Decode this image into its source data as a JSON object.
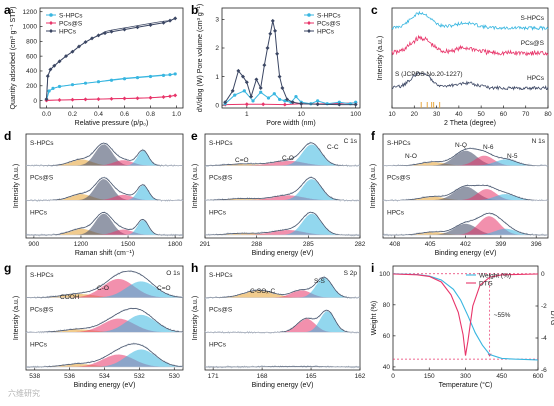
{
  "colors": {
    "shpcs": "#38b6e0",
    "pcs": "#e8356a",
    "hpcs": "#3b4663",
    "sulfur": "#e6a030",
    "dtg": "#e8356a",
    "weight": "#38b6e0"
  },
  "watermark": "六维研究",
  "chart_data": [
    {
      "panel": "a",
      "type": "line",
      "xlabel": "Relative pressure (p/p₀)",
      "ylabel": "Quantity adsorbed (cm³ g⁻¹ STP)",
      "xlim": [
        -0.05,
        1.05
      ],
      "ylim": [
        -100,
        1250
      ],
      "xticks": [
        "0.0",
        "0.2",
        "0.4",
        "0.6",
        "0.8",
        "1.0"
      ],
      "yticks": [
        "0",
        "200",
        "400",
        "600",
        "800",
        "1000",
        "1200"
      ],
      "legend_position": "top-left",
      "series": [
        {
          "name": "S-HPCs",
          "x": [
            0,
            0.02,
            0.05,
            0.1,
            0.2,
            0.3,
            0.4,
            0.5,
            0.6,
            0.7,
            0.8,
            0.9,
            0.95,
            0.99
          ],
          "y": [
            10,
            130,
            165,
            190,
            215,
            235,
            255,
            275,
            295,
            310,
            325,
            340,
            350,
            360
          ]
        },
        {
          "name": "PCs@S",
          "x": [
            0,
            0.1,
            0.2,
            0.3,
            0.4,
            0.5,
            0.6,
            0.7,
            0.8,
            0.9,
            0.95,
            0.99
          ],
          "y": [
            2,
            8,
            12,
            16,
            20,
            24,
            28,
            32,
            38,
            48,
            58,
            70
          ]
        },
        {
          "name": "HPCs",
          "x": [
            0,
            0.01,
            0.03,
            0.06,
            0.1,
            0.15,
            0.2,
            0.25,
            0.3,
            0.35,
            0.4,
            0.45,
            0.5,
            0.6,
            0.7,
            0.8,
            0.9,
            0.95,
            0.99
          ],
          "y": [
            20,
            330,
            420,
            470,
            530,
            600,
            660,
            730,
            790,
            840,
            880,
            910,
            930,
            960,
            990,
            1020,
            1050,
            1080,
            1110
          ]
        }
      ]
    },
    {
      "panel": "b",
      "type": "line",
      "xlabel": "Pore width (nm)",
      "ylabel": "dV/dlog (W) Pore volume (cm³ g⁻¹)",
      "xscale": "log",
      "xlim": [
        0.35,
        120
      ],
      "ylim": [
        -0.1,
        3.4
      ],
      "xticks": [
        "1",
        "10",
        "100"
      ],
      "yticks": [
        "0",
        "1",
        "2",
        "3"
      ],
      "legend_position": "top-right",
      "series": [
        {
          "name": "S-HPCs",
          "x": [
            0.4,
            0.6,
            0.9,
            1.3,
            1.8,
            2.5,
            3.2,
            4.0,
            5.0,
            6.5,
            8,
            10,
            15,
            20,
            30,
            50,
            80,
            100
          ],
          "y": [
            0.05,
            0.35,
            0.5,
            0.15,
            0.45,
            0.25,
            0.4,
            0.2,
            0.15,
            0.1,
            0.3,
            0.1,
            0.05,
            0.15,
            0.05,
            0.1,
            0.05,
            0.1
          ]
        },
        {
          "name": "PCs@S",
          "x": [
            0.4,
            1,
            2,
            5,
            10,
            20,
            50,
            100
          ],
          "y": [
            0.02,
            0.03,
            0.03,
            0.02,
            0.05,
            0.04,
            0.06,
            0.08
          ]
        },
        {
          "name": "HPCs",
          "x": [
            0.4,
            0.55,
            0.7,
            0.85,
            1.0,
            1.2,
            1.5,
            1.8,
            2.1,
            2.4,
            2.7,
            3.0,
            3.3,
            3.6,
            4.0,
            4.5,
            5.5,
            7,
            10,
            20,
            50,
            100
          ],
          "y": [
            0.1,
            0.5,
            1.2,
            1.0,
            0.8,
            0.3,
            0.9,
            0.6,
            1.4,
            2.0,
            2.5,
            2.95,
            2.6,
            1.8,
            1.0,
            0.6,
            0.2,
            0.1,
            0.05,
            0.03,
            0.02,
            0.02
          ]
        }
      ]
    },
    {
      "panel": "c",
      "type": "line",
      "xlabel": "2 Theta (degree)",
      "ylabel": "Intensity (a.u.)",
      "xlim": [
        10,
        80
      ],
      "xticks": [
        "10",
        "20",
        "30",
        "40",
        "50",
        "60",
        "70",
        "80"
      ],
      "reference_label": "S (JCPDS No.20-1227)",
      "reference_lines": [
        23.1,
        25.8,
        27.8,
        28.7,
        31.4
      ],
      "series_labels": [
        "S-HPCs",
        "PCs@S",
        "HPCs"
      ]
    },
    {
      "panel": "d",
      "type": "line",
      "xlabel": "Raman shift (cm⁻¹)",
      "ylabel": "Intensity (a.u.)",
      "xlim": [
        850,
        1850
      ],
      "xticks": [
        "900",
        "1200",
        "1500",
        "1800"
      ],
      "series_labels": [
        "S-HPCs",
        "PCs@S",
        "HPCs"
      ]
    },
    {
      "panel": "e",
      "type": "line",
      "xlabel": "Binding energy (eV)",
      "ylabel": "Intensity (a.u.)",
      "xlim": [
        291,
        282
      ],
      "xticks": [
        "291",
        "288",
        "285",
        "282"
      ],
      "title": "C 1s",
      "peak_labels": [
        "C=O",
        "C-O",
        "C-C"
      ],
      "series_labels": [
        "S-HPCs",
        "PCs@S",
        "HPCs"
      ]
    },
    {
      "panel": "f",
      "type": "line",
      "xlabel": "Binding energy (eV)",
      "ylabel": "Intensity (a.u.)",
      "xlim": [
        409,
        395
      ],
      "xticks": [
        "408",
        "405",
        "402",
        "399",
        "396"
      ],
      "title": "N 1s",
      "peak_labels": [
        "N-O",
        "N-Q",
        "N-6",
        "N-5"
      ],
      "series_labels": [
        "S-HPCs",
        "PCs@S",
        "HPCs"
      ]
    },
    {
      "panel": "g",
      "type": "line",
      "xlabel": "Binding energy (eV)",
      "ylabel": "Intensity (a.u.)",
      "xlim": [
        538.5,
        529.5
      ],
      "xticks": [
        "538",
        "536",
        "534",
        "532",
        "530"
      ],
      "title": "O 1s",
      "peak_labels": [
        "COOH",
        "C-O",
        "C=O"
      ],
      "series_labels": [
        "S-HPCs",
        "PCs@S",
        "HPCs"
      ]
    },
    {
      "panel": "h",
      "type": "line",
      "xlabel": "Binding energy (eV)",
      "ylabel": "Intensity (a.u.)",
      "xlim": [
        171.5,
        162
      ],
      "xticks": [
        "171",
        "168",
        "165",
        "162"
      ],
      "title": "S 2p",
      "peak_labels": [
        "C-SOₓ-C",
        "S-S"
      ],
      "series_labels": [
        "S-HPCs",
        "PCs@S",
        "HPCs"
      ]
    },
    {
      "panel": "i",
      "type": "line",
      "xlabel": "Temperature (°C)",
      "ylabel": "Weight (%)",
      "ylabel_right": "DTG",
      "xlim": [
        0,
        600
      ],
      "ylim": [
        38,
        105
      ],
      "ylim_right": [
        -6,
        0.5
      ],
      "xticks": [
        "0",
        "150",
        "300",
        "450",
        "600"
      ],
      "yticks": [
        "40",
        "60",
        "80",
        "100"
      ],
      "yticks_right": [
        "0",
        "-2",
        "-4",
        "-6"
      ],
      "annotation": "~55%",
      "legend_position": "top-right",
      "series": [
        {
          "name": "Weight (%)",
          "x": [
            0,
            100,
            150,
            200,
            250,
            280,
            310,
            340,
            370,
            400,
            450,
            500,
            600
          ],
          "y": [
            100,
            99.5,
            98.5,
            96,
            90,
            83,
            73,
            62,
            54,
            48,
            45.5,
            45,
            44.5
          ]
        },
        {
          "name": "DTG",
          "x": [
            0,
            100,
            150,
            200,
            240,
            270,
            290,
            300,
            310,
            330,
            360,
            400,
            450,
            600
          ],
          "y": [
            0,
            -0.05,
            -0.15,
            -0.5,
            -1.3,
            -2.4,
            -3.8,
            -5.1,
            -4.2,
            -2.0,
            -0.7,
            -0.2,
            -0.05,
            0
          ]
        }
      ]
    }
  ]
}
